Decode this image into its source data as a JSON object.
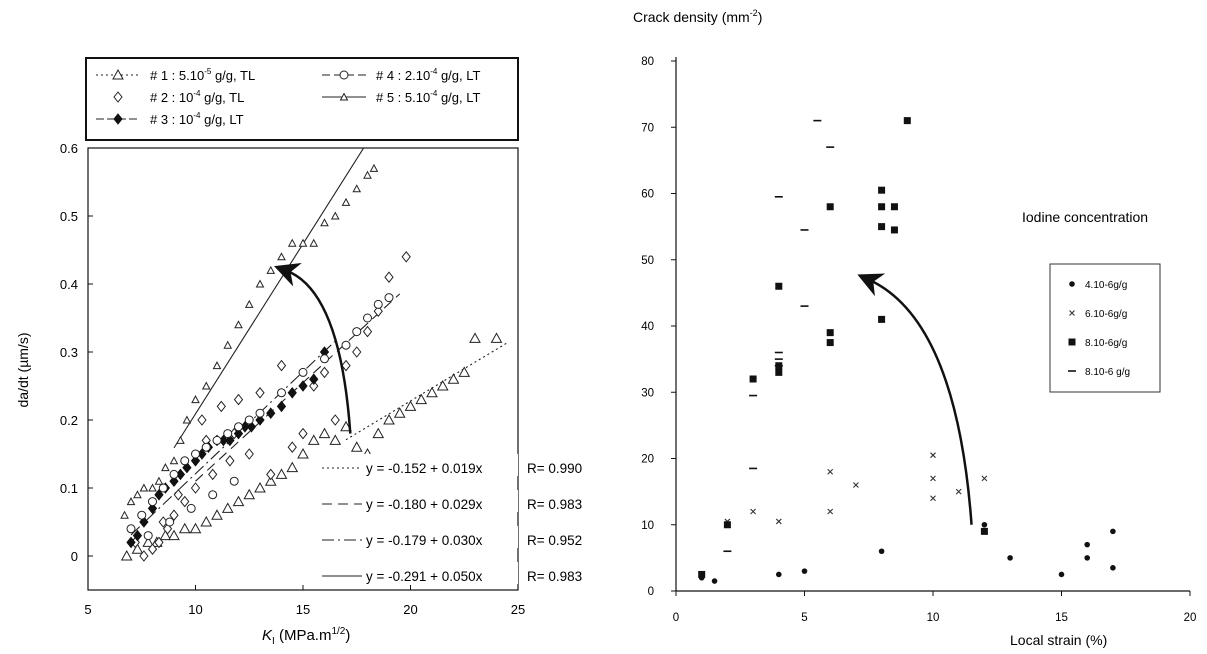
{
  "chart_data": [
    {
      "type": "scatter",
      "xlabel": "K",
      "xlabel_sub": "I",
      "xlabel_unit": " (MPa.m",
      "xlabel_exp": "1/2",
      "xlabel_close": ")",
      "ylabel": "da/dt (µm/s)",
      "xlim": [
        5,
        25
      ],
      "ylim": [
        -0.05,
        0.6
      ],
      "xticks": [
        5,
        10,
        15,
        20,
        25
      ],
      "yticks": [
        0,
        0.1,
        0.2,
        0.3,
        0.4,
        0.5,
        0.6
      ],
      "legend_position": "top",
      "legend": [
        {
          "hash": "#",
          "label": "1 : 5.10",
          "exp": "-5",
          "tail": " g/g, TL"
        },
        {
          "hash": "#",
          "label": "2 : 10",
          "exp": "-4",
          "tail": " g/g, TL"
        },
        {
          "hash": "#",
          "label": "3 : 10",
          "exp": "-4",
          "tail": " g/g, LT"
        },
        {
          "hash": "#",
          "label": "4 : 2.10",
          "exp": "-4",
          "tail": " g/g, LT"
        },
        {
          "hash": "#",
          "label": "5 : 5.10",
          "exp": "-4",
          "tail": " g/g, LT"
        }
      ],
      "series": [
        {
          "name": "# 1 : 5.10-5 g/g, TL",
          "marker": "triangle",
          "x": [
            6.8,
            7.3,
            7.8,
            8.2,
            8.6,
            9.0,
            9.5,
            10.0,
            10.5,
            11.0,
            11.5,
            12.0,
            12.5,
            13.0,
            13.5,
            14.0,
            14.5,
            15.0,
            15.5,
            16.0,
            16.5,
            17.0,
            17.5,
            18.0,
            18.5,
            19.0,
            19.5,
            20.0,
            20.5,
            21.0,
            21.5,
            22.0,
            22.5,
            23.0,
            24.0
          ],
          "y": [
            0.0,
            0.01,
            0.02,
            0.02,
            0.03,
            0.03,
            0.04,
            0.04,
            0.05,
            0.06,
            0.07,
            0.08,
            0.09,
            0.1,
            0.11,
            0.12,
            0.13,
            0.15,
            0.17,
            0.18,
            0.17,
            0.19,
            0.16,
            0.15,
            0.18,
            0.2,
            0.21,
            0.22,
            0.23,
            0.24,
            0.25,
            0.26,
            0.27,
            0.32,
            0.32
          ]
        },
        {
          "name": "# 2 : 10-4 g/g, TL",
          "marker": "diamond",
          "x": [
            7.2,
            7.6,
            8.0,
            8.3,
            8.7,
            9.0,
            9.5,
            10.0,
            10.3,
            10.8,
            11.2,
            11.6,
            12.0,
            12.5,
            13.0,
            13.5,
            14.0,
            14.5,
            15.0,
            15.5,
            16.0,
            16.5,
            17.0,
            17.5,
            18.0,
            18.5,
            19.0,
            19.8,
            8.5,
            9.2,
            10.5,
            11.8
          ],
          "y": [
            0.02,
            0.0,
            0.01,
            0.02,
            0.04,
            0.06,
            0.08,
            0.1,
            0.2,
            0.12,
            0.22,
            0.14,
            0.23,
            0.15,
            0.24,
            0.12,
            0.28,
            0.16,
            0.18,
            0.25,
            0.27,
            0.2,
            0.28,
            0.3,
            0.33,
            0.36,
            0.41,
            0.44,
            0.05,
            0.09,
            0.17,
            0.18
          ]
        },
        {
          "name": "# 3 : 10-4 g/g, LT",
          "marker": "filled-diamond",
          "x": [
            7.0,
            7.3,
            7.6,
            8.0,
            8.3,
            8.6,
            9.0,
            9.3,
            9.6,
            10.0,
            10.3,
            10.6,
            11.0,
            11.3,
            11.6,
            12.0,
            12.3,
            12.6,
            13.0,
            13.5,
            14.0,
            14.5,
            15.0,
            15.5,
            16.0
          ],
          "y": [
            0.02,
            0.03,
            0.05,
            0.07,
            0.09,
            0.1,
            0.11,
            0.12,
            0.13,
            0.14,
            0.15,
            0.16,
            0.17,
            0.17,
            0.17,
            0.18,
            0.19,
            0.19,
            0.2,
            0.21,
            0.22,
            0.24,
            0.25,
            0.26,
            0.3
          ]
        },
        {
          "name": "# 4 : 2.10-4 g/g, LT",
          "marker": "circle",
          "x": [
            7.0,
            7.5,
            8.0,
            8.5,
            9.0,
            9.5,
            10.0,
            10.5,
            11.0,
            11.5,
            12.0,
            12.5,
            13.0,
            14.0,
            15.0,
            16.0,
            17.0,
            17.5,
            18.0,
            18.5,
            19.0,
            7.8,
            8.8,
            9.8,
            10.8,
            11.8
          ],
          "y": [
            0.04,
            0.06,
            0.08,
            0.1,
            0.12,
            0.14,
            0.15,
            0.16,
            0.17,
            0.18,
            0.19,
            0.2,
            0.21,
            0.24,
            0.27,
            0.29,
            0.31,
            0.33,
            0.35,
            0.37,
            0.38,
            0.03,
            0.05,
            0.07,
            0.09,
            0.11
          ]
        },
        {
          "name": "# 5 : 5.10-4 g/g, LT",
          "marker": "small-triangle",
          "x": [
            6.7,
            7.0,
            7.3,
            7.6,
            8.0,
            8.3,
            8.6,
            9.0,
            9.3,
            9.6,
            10.0,
            10.5,
            11.0,
            11.5,
            12.0,
            12.5,
            13.0,
            13.5,
            14.0,
            14.5,
            15.0,
            15.5,
            16.0,
            16.5,
            17.0,
            17.5,
            18.0,
            18.3
          ],
          "y": [
            0.06,
            0.08,
            0.09,
            0.1,
            0.1,
            0.11,
            0.13,
            0.14,
            0.17,
            0.2,
            0.23,
            0.25,
            0.28,
            0.31,
            0.34,
            0.37,
            0.4,
            0.42,
            0.44,
            0.46,
            0.46,
            0.46,
            0.49,
            0.5,
            0.52,
            0.54,
            0.56,
            0.57
          ]
        }
      ],
      "fits": [
        {
          "label": "y = -0.152 + 0.019x",
          "r": "R= 0.990",
          "style": "dotted",
          "intercept": -0.152,
          "slope": 0.019
        },
        {
          "label": "y = -0.180 + 0.029x",
          "r": "R= 0.983",
          "style": "dashed",
          "intercept": -0.18,
          "slope": 0.029
        },
        {
          "label": "y = -0.179 + 0.030x",
          "r": "R= 0.952",
          "style": "dashdot",
          "intercept": -0.179,
          "slope": 0.03
        },
        {
          "label": "y = -0.291 + 0.050x",
          "r": "R= 0.983",
          "style": "solid",
          "intercept": -0.291,
          "slope": 0.05
        }
      ],
      "arrow": {
        "from": [
          17.2,
          0.18
        ],
        "to": [
          14.2,
          0.42
        ]
      }
    },
    {
      "type": "scatter",
      "title": "Crack density (mm",
      "title_exp": "-2",
      "title_close": ")",
      "xlabel": "Local strain  (%)",
      "xlim": [
        0,
        20
      ],
      "ylim": [
        0,
        80
      ],
      "xticks": [
        0,
        5,
        10,
        15,
        20
      ],
      "yticks": [
        0,
        10,
        20,
        30,
        40,
        50,
        60,
        70,
        80
      ],
      "annotation": "Iodine concentration",
      "legend_position": "right",
      "series": [
        {
          "name": "4.10-6g/g",
          "marker": "dot",
          "x": [
            1.0,
            1.5,
            2.0,
            4.0,
            5.0,
            8.0,
            12.0,
            13.0,
            15.0,
            16.0,
            16.0,
            17.0,
            17.0
          ],
          "y": [
            2.0,
            1.5,
            10.0,
            2.5,
            3.0,
            6.0,
            10.0,
            5.0,
            2.5,
            7.0,
            5.0,
            9.0,
            3.5
          ]
        },
        {
          "name": "6.10-6g/g",
          "marker": "cross",
          "x": [
            2.0,
            3.0,
            4.0,
            6.0,
            6.0,
            7.0,
            10.0,
            10.0,
            10.0,
            11.0,
            12.0
          ],
          "y": [
            10.5,
            12.0,
            10.5,
            18.0,
            12.0,
            16.0,
            20.5,
            17.0,
            14.0,
            15.0,
            17.0
          ]
        },
        {
          "name": "8.10-6g/g",
          "marker": "square",
          "x": [
            1.0,
            2.0,
            3.0,
            4.0,
            4.0,
            4.0,
            6.0,
            6.0,
            6.0,
            8.0,
            8.0,
            8.0,
            8.0,
            8.5,
            8.5,
            9.0,
            12.0
          ],
          "y": [
            2.5,
            10.0,
            32.0,
            46.0,
            34.0,
            33.0,
            58.0,
            39.0,
            37.5,
            60.5,
            58.0,
            55.0,
            41.0,
            58.0,
            54.5,
            71.0,
            9.0
          ]
        },
        {
          "name": "8.10-6 g/g",
          "marker": "dash",
          "x": [
            2.0,
            3.0,
            3.0,
            4.0,
            4.0,
            4.0,
            4.0,
            5.0,
            5.0,
            5.5,
            6.0
          ],
          "y": [
            6.0,
            29.5,
            18.5,
            59.5,
            36.0,
            35.0,
            34.0,
            54.5,
            43.0,
            71.0,
            67.0
          ]
        }
      ],
      "arrow": {
        "from": [
          11.5,
          10.0
        ],
        "to": [
          7.5,
          47.0
        ]
      }
    }
  ]
}
